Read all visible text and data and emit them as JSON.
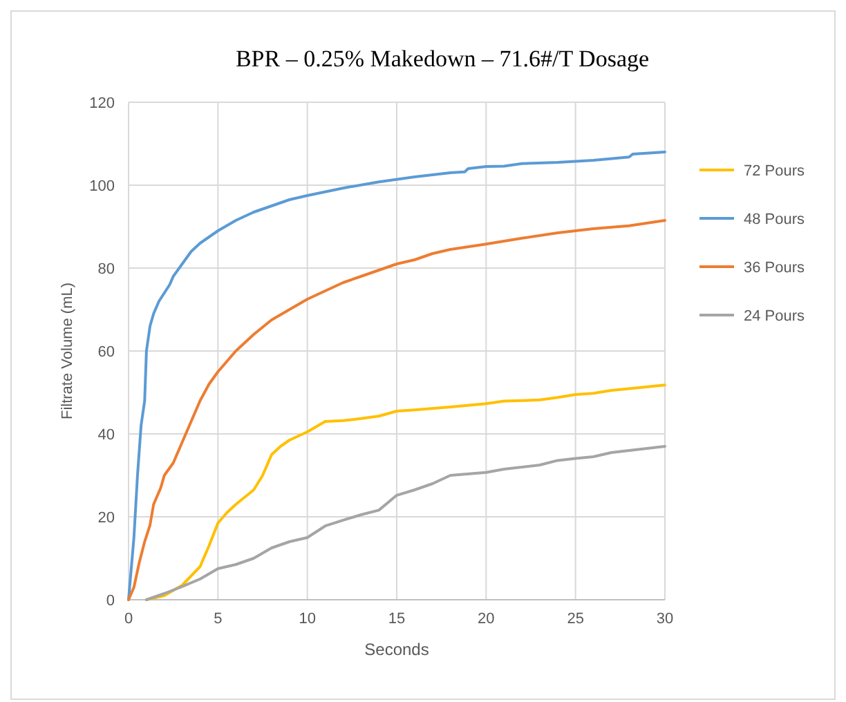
{
  "chart_data": {
    "type": "line",
    "title": "BPR – 0.25% Makedown – 71.6#/T Dosage",
    "xlabel": "Seconds",
    "ylabel": "Filtrate Volume (mL)",
    "xlim": [
      0,
      30
    ],
    "xticks": [
      0,
      5,
      10,
      15,
      20,
      25,
      30
    ],
    "ylim": [
      0,
      120
    ],
    "yticks": [
      0,
      20,
      40,
      60,
      80,
      100,
      120
    ],
    "grid": true,
    "legend": "right",
    "marker": "none",
    "line_style": "solid",
    "series": [
      {
        "name": "72 Pours",
        "color": "#ffc000",
        "x": [
          1,
          2,
          3,
          4,
          4.5,
          5,
          5.5,
          6,
          7,
          7.5,
          8,
          8.5,
          9,
          10,
          11,
          12,
          13,
          14,
          15,
          16,
          18,
          20,
          21,
          23,
          24,
          25,
          26,
          27,
          28,
          30
        ],
        "values": [
          0,
          1,
          3.5,
          8,
          13,
          18.5,
          21,
          23,
          26.5,
          30,
          35,
          37,
          38.5,
          40.5,
          43,
          43.2,
          43.7,
          44.3,
          45.5,
          45.8,
          46.5,
          47.3,
          47.9,
          48.2,
          48.8,
          49.5,
          49.8,
          50.5,
          50.9,
          51.8
        ]
      },
      {
        "name": "48 Pours",
        "color": "#5b9bd5",
        "x": [
          0,
          0.3,
          0.5,
          0.7,
          0.9,
          1,
          1.2,
          1.4,
          1.7,
          2,
          2.3,
          2.5,
          3,
          3.5,
          4,
          4.5,
          5,
          6,
          7,
          8,
          9,
          10,
          12,
          14,
          16,
          18,
          18.8,
          19,
          20,
          21,
          22,
          24,
          26,
          28,
          28.2,
          30
        ],
        "values": [
          0,
          15,
          30,
          42,
          48,
          60,
          66,
          69,
          72,
          74,
          76,
          78,
          81,
          84,
          86,
          87.5,
          89,
          91.5,
          93.5,
          95,
          96.5,
          97.5,
          99.3,
          100.8,
          102,
          103,
          103.2,
          104,
          104.5,
          104.6,
          105.2,
          105.5,
          106,
          106.8,
          107.5,
          108
        ]
      },
      {
        "name": "36 Pours",
        "color": "#ed7d31",
        "x": [
          0,
          0.3,
          0.6,
          0.9,
          1.2,
          1.4,
          1.8,
          2,
          2.5,
          3,
          3.5,
          4,
          4.5,
          5,
          5.5,
          6,
          7,
          8,
          9,
          10,
          11,
          12,
          13,
          14,
          15,
          16,
          17,
          18,
          20,
          22,
          24,
          26,
          28,
          30
        ],
        "values": [
          0,
          3,
          9,
          14,
          18,
          23,
          27,
          30,
          33,
          38,
          43,
          48,
          52,
          55,
          57.5,
          60,
          64,
          67.5,
          70,
          72.5,
          74.5,
          76.5,
          78,
          79.5,
          81,
          82,
          83.5,
          84.5,
          85.8,
          87.2,
          88.5,
          89.5,
          90.2,
          91.5
        ]
      },
      {
        "name": "24 Pours",
        "color": "#a5a5a5",
        "x": [
          1,
          2,
          3,
          4,
          5,
          6,
          7,
          8,
          9,
          10,
          11,
          12,
          13,
          14,
          15,
          16,
          17,
          18,
          20,
          21,
          23,
          24,
          25,
          26,
          27,
          28,
          30
        ],
        "values": [
          0,
          1.5,
          3.2,
          5,
          7.5,
          8.5,
          10,
          12.5,
          14,
          15,
          17.8,
          19.2,
          20.5,
          21.6,
          25.2,
          26.5,
          28,
          30,
          30.7,
          31.5,
          32.5,
          33.6,
          34.1,
          34.5,
          35.5,
          36,
          37
        ]
      }
    ]
  }
}
